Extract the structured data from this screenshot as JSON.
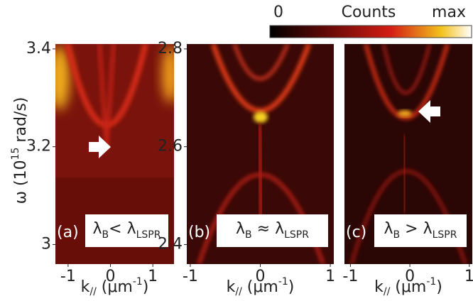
{
  "colorbar": {
    "label": "Counts",
    "min_label": "0",
    "max_label": "max"
  },
  "ylabel": [
    "ω (10",
    "15",
    " rad/s)"
  ],
  "chart_data": [
    {
      "type": "heatmap",
      "panel_label": "(a)",
      "annotation": [
        "λ",
        "B",
        "< λ",
        "LSPR"
      ],
      "xlabel": [
        "k",
        "//",
        " (μm",
        "-1",
        ")"
      ],
      "xlim": [
        -1.3,
        1.5
      ],
      "xticks": [
        -1,
        0,
        1
      ],
      "ylim": [
        2.96,
        3.41
      ],
      "yticks": [
        3,
        3.2,
        3.4
      ]
    },
    {
      "type": "heatmap",
      "panel_label": "(b)",
      "annotation": [
        "λ",
        "B",
        " ≈ λ",
        "LSPR"
      ],
      "xlabel": [
        "k",
        "//",
        " (μm",
        "-1",
        ")"
      ],
      "xlim": [
        -1.05,
        1.05
      ],
      "xticks": [
        -1,
        0,
        1
      ],
      "ylim": [
        2.36,
        2.81
      ],
      "yticks": [
        2.4,
        2.6,
        2.8
      ]
    },
    {
      "type": "heatmap",
      "panel_label": "(c)",
      "annotation": [
        "λ",
        "B",
        " > λ",
        "LSPR"
      ],
      "xlabel": [
        "k",
        "//",
        " (μm",
        "-1",
        ")"
      ],
      "xlim": [
        -1.1,
        1.05
      ],
      "xticks": [
        -1,
        0,
        1
      ]
    }
  ]
}
